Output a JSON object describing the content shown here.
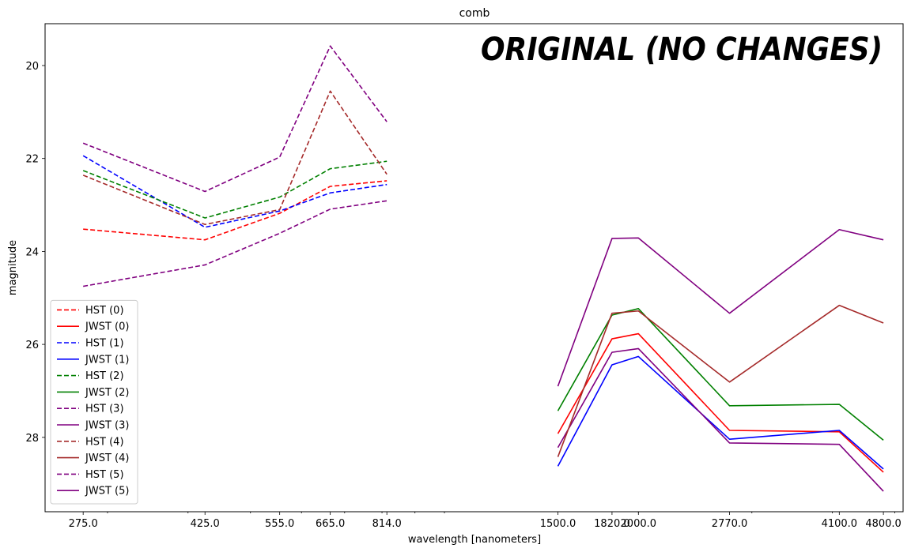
{
  "chart_data": {
    "type": "line",
    "title": "comb",
    "xlabel": "wavelength [nanometers]",
    "ylabel": "magnitude",
    "x_scale": "log",
    "y_inverted": true,
    "xlim": [
      240,
      5150
    ],
    "ylim": [
      29.6,
      19.1
    ],
    "x_ticks": [
      275.0,
      425.0,
      555.0,
      665.0,
      814.0,
      1500.0,
      1820.0,
      2000.0,
      2770.0,
      4100.0,
      4800.0
    ],
    "x_tick_labels": [
      "275.0",
      "425.0",
      "555.0",
      "665.0",
      "814.0",
      "1500.0",
      "1820.0",
      "2000.0",
      "2770.0",
      "4100.0",
      "4800.0"
    ],
    "y_ticks": [
      20,
      22,
      24,
      26,
      28
    ],
    "y_tick_labels": [
      "20",
      "22",
      "24",
      "26",
      "28"
    ],
    "grid": false,
    "legend_position": "lower-left",
    "annotation": "ORIGINAL (NO CHANGES)",
    "series": [
      {
        "name": "HST (0)",
        "color": "#ff0000",
        "style": "dashed",
        "x": [
          275,
          425,
          555,
          665,
          814
        ],
        "values": [
          23.52,
          23.75,
          23.18,
          22.6,
          22.48
        ]
      },
      {
        "name": "JWST (0)",
        "color": "#ff0000",
        "style": "solid",
        "x": [
          1500,
          1820,
          2000,
          2770,
          4100,
          4800
        ],
        "values": [
          27.92,
          25.88,
          25.77,
          27.85,
          27.88,
          28.75
        ]
      },
      {
        "name": "HST (1)",
        "color": "#0000ff",
        "style": "dashed",
        "x": [
          275,
          425,
          555,
          665,
          814
        ],
        "values": [
          21.94,
          23.48,
          23.13,
          22.74,
          22.56
        ]
      },
      {
        "name": "JWST (1)",
        "color": "#0000ff",
        "style": "solid",
        "x": [
          1500,
          1820,
          2000,
          2770,
          4100,
          4800
        ],
        "values": [
          28.62,
          26.44,
          26.26,
          28.04,
          27.85,
          28.68
        ]
      },
      {
        "name": "HST (2)",
        "color": "#008000",
        "style": "dashed",
        "x": [
          275,
          425,
          555,
          665,
          814
        ],
        "values": [
          22.26,
          23.28,
          22.83,
          22.22,
          22.06
        ]
      },
      {
        "name": "JWST (2)",
        "color": "#008000",
        "style": "solid",
        "x": [
          1500,
          1820,
          2000,
          2770,
          4100,
          4800
        ],
        "values": [
          27.43,
          25.37,
          25.23,
          27.32,
          27.29,
          28.06
        ]
      },
      {
        "name": "HST (3)",
        "color": "#800080",
        "style": "dashed",
        "x": [
          275,
          425,
          555,
          665,
          814
        ],
        "values": [
          21.67,
          22.71,
          21.97,
          19.58,
          21.21
        ]
      },
      {
        "name": "JWST (3)",
        "color": "#800080",
        "style": "solid",
        "x": [
          1500,
          1820,
          2000,
          2770,
          4100,
          4800
        ],
        "values": [
          28.22,
          26.17,
          26.09,
          28.12,
          28.15,
          29.16
        ]
      },
      {
        "name": "HST (4)",
        "color": "#a52a2a",
        "style": "dashed",
        "x": [
          275,
          425,
          555,
          665,
          814
        ],
        "values": [
          22.36,
          23.42,
          23.1,
          20.55,
          22.34
        ]
      },
      {
        "name": "JWST (4)",
        "color": "#a52a2a",
        "style": "solid",
        "x": [
          1500,
          1820,
          2000,
          2770,
          4100,
          4800
        ],
        "values": [
          28.42,
          25.33,
          25.28,
          26.81,
          25.16,
          25.54
        ]
      },
      {
        "name": "HST (5)",
        "color": "#800080",
        "style": "dashed",
        "x": [
          275,
          425,
          555,
          665,
          814
        ],
        "values": [
          24.75,
          24.29,
          23.61,
          23.09,
          22.91
        ]
      },
      {
        "name": "JWST (5)",
        "color": "#800080",
        "style": "solid",
        "x": [
          1500,
          1820,
          2000,
          2770,
          4100,
          4800
        ],
        "values": [
          26.9,
          23.72,
          23.71,
          25.33,
          23.53,
          23.75
        ]
      }
    ]
  }
}
